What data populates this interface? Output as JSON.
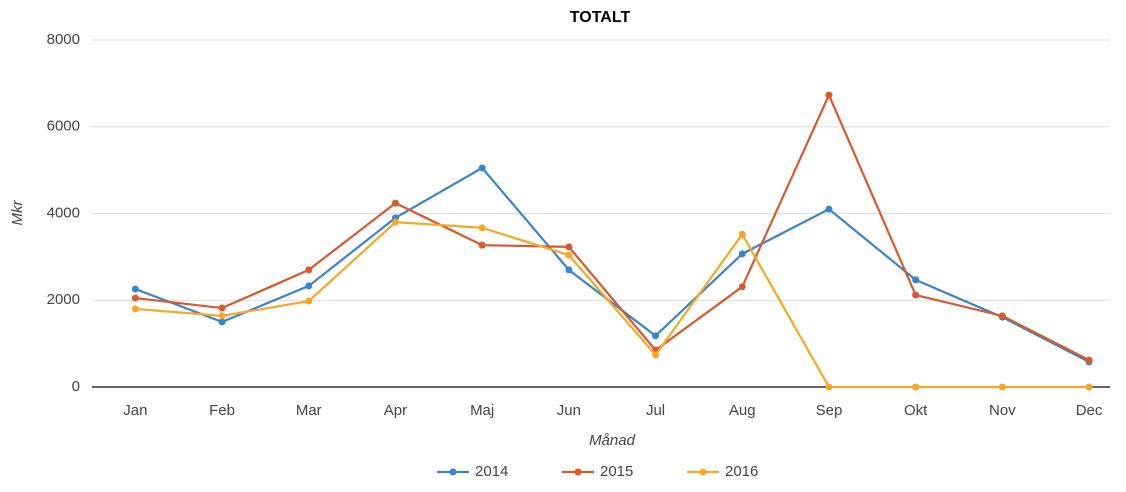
{
  "chart_data": {
    "type": "line",
    "title": "TOTALT",
    "x_label": "Månad",
    "y_label": "Mkr",
    "categories": [
      "Jan",
      "Feb",
      "Mar",
      "Apr",
      "Maj",
      "Jun",
      "Jul",
      "Aug",
      "Sep",
      "Okt",
      "Nov",
      "Dec"
    ],
    "series": [
      {
        "name": "2014",
        "color": "#3a84c9",
        "values": [
          2260,
          1500,
          2330,
          3900,
          5050,
          2700,
          1180,
          3070,
          4100,
          2470,
          1610,
          580
        ]
      },
      {
        "name": "2015",
        "color": "#d9582c",
        "values": [
          2050,
          1820,
          2700,
          4240,
          3270,
          3230,
          850,
          2310,
          6730,
          2120,
          1640,
          620
        ]
      },
      {
        "name": "2016",
        "color": "#f4a825",
        "values": [
          1800,
          1640,
          1980,
          3800,
          3670,
          3040,
          740,
          3520,
          0,
          0,
          0,
          0
        ]
      }
    ],
    "ylim": [
      0,
      8000
    ],
    "yticks": [
      0,
      2000,
      4000,
      6000,
      8000
    ],
    "grid": true,
    "legend": "bottom"
  }
}
